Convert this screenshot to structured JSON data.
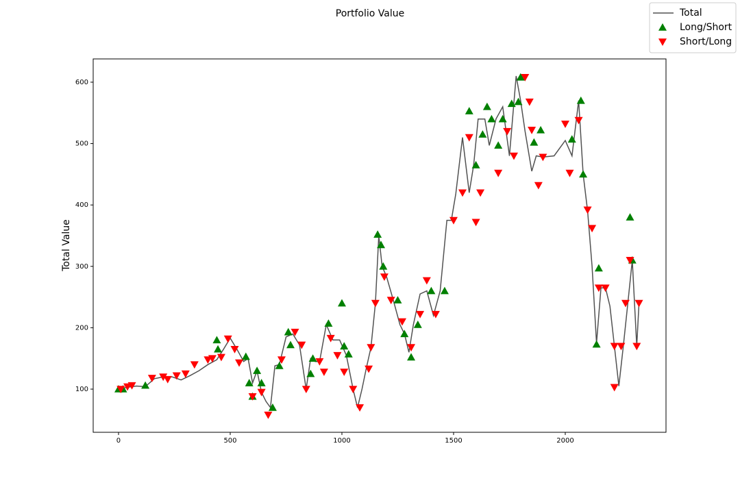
{
  "chart_data": {
    "type": "line",
    "title": "Portfolio Value",
    "ylabel": "Total Value",
    "xlim": [
      -113.5,
      2451
    ],
    "ylim": [
      29.7,
      637.9
    ],
    "xticks": [
      0,
      500,
      1000,
      1500,
      2000
    ],
    "yticks": [
      100,
      200,
      300,
      400,
      500,
      600
    ],
    "grid": false,
    "legend": "upper right",
    "series": [
      {
        "name": "Total",
        "type": "line",
        "color": "#333333",
        "x": [
          0,
          40,
          80,
          120,
          160,
          200,
          240,
          280,
          320,
          360,
          400,
          440,
          470,
          500,
          530,
          560,
          580,
          600,
          620,
          640,
          660,
          680,
          700,
          720,
          750,
          780,
          810,
          840,
          860,
          880,
          900,
          930,
          960,
          990,
          1020,
          1050,
          1070,
          1090,
          1110,
          1130,
          1150,
          1165,
          1180,
          1200,
          1230,
          1260,
          1280,
          1300,
          1320,
          1350,
          1380,
          1410,
          1440,
          1470,
          1490,
          1510,
          1540,
          1570,
          1590,
          1610,
          1640,
          1660,
          1690,
          1720,
          1750,
          1780,
          1800,
          1820,
          1850,
          1870,
          1900,
          1950,
          2000,
          2030,
          2060,
          2080,
          2100,
          2120,
          2140,
          2160,
          2180,
          2200,
          2220,
          2240,
          2260,
          2280,
          2300,
          2320,
          2330
        ],
        "values": [
          100,
          103,
          105,
          104,
          117,
          120,
          120,
          115,
          122,
          130,
          140,
          148,
          165,
          183,
          165,
          145,
          150,
          110,
          130,
          95,
          80,
          70,
          138,
          140,
          185,
          190,
          172,
          100,
          150,
          145,
          145,
          205,
          180,
          180,
          155,
          100,
          70,
          100,
          135,
          168,
          240,
          350,
          300,
          283,
          245,
          205,
          190,
          160,
          205,
          255,
          260,
          220,
          260,
          375,
          375,
          418,
          510,
          420,
          465,
          540,
          540,
          497,
          540,
          560,
          480,
          610,
          570,
          520,
          455,
          480,
          478,
          480,
          505,
          480,
          570,
          450,
          390,
          300,
          175,
          265,
          265,
          235,
          170,
          105,
          170,
          240,
          310,
          170,
          240
        ]
      },
      {
        "name": "Long/Short",
        "type": "scatter",
        "marker": "^",
        "color": "green",
        "x": [
          0,
          20,
          120,
          440,
          445,
          570,
          585,
          600,
          620,
          640,
          690,
          720,
          760,
          770,
          860,
          870,
          940,
          1000,
          1010,
          1030,
          1160,
          1175,
          1185,
          1250,
          1280,
          1310,
          1340,
          1400,
          1460,
          1570,
          1600,
          1630,
          1650,
          1670,
          1700,
          1720,
          1760,
          1790,
          1800,
          1860,
          1890,
          2030,
          2070,
          2080,
          2140,
          2150,
          2290,
          2300
        ],
        "values": [
          100,
          100,
          106,
          180,
          165,
          153,
          110,
          88,
          130,
          110,
          70,
          138,
          193,
          172,
          125,
          150,
          207,
          240,
          170,
          157,
          352,
          335,
          300,
          245,
          190,
          152,
          205,
          260,
          260,
          553,
          465,
          515,
          560,
          540,
          497,
          540,
          565,
          568,
          608,
          502,
          522,
          507,
          570,
          450,
          173,
          297,
          380,
          310
        ]
      },
      {
        "name": "Short/Long",
        "type": "scatter",
        "marker": "v",
        "color": "red",
        "x": [
          10,
          40,
          60,
          150,
          200,
          220,
          260,
          300,
          340,
          400,
          420,
          460,
          490,
          520,
          540,
          600,
          640,
          670,
          730,
          790,
          820,
          840,
          900,
          920,
          950,
          980,
          1010,
          1050,
          1080,
          1120,
          1130,
          1150,
          1190,
          1220,
          1270,
          1310,
          1350,
          1380,
          1420,
          1500,
          1540,
          1570,
          1600,
          1620,
          1700,
          1740,
          1770,
          1820,
          1840,
          1850,
          1880,
          1900,
          2000,
          2020,
          2060,
          2100,
          2120,
          2150,
          2180,
          2220,
          2220,
          2250,
          2270,
          2290,
          2320,
          2330
        ],
        "values": [
          100,
          104,
          106,
          118,
          120,
          116,
          122,
          125,
          140,
          148,
          150,
          152,
          182,
          165,
          143,
          88,
          95,
          58,
          148,
          193,
          172,
          100,
          145,
          128,
          183,
          155,
          128,
          100,
          70,
          133,
          168,
          240,
          283,
          245,
          210,
          168,
          222,
          277,
          222,
          375,
          420,
          510,
          372,
          420,
          452,
          520,
          480,
          608,
          568,
          522,
          432,
          478,
          532,
          452,
          538,
          392,
          362,
          265,
          265,
          170,
          103,
          170,
          240,
          310,
          170,
          240
        ]
      }
    ]
  }
}
